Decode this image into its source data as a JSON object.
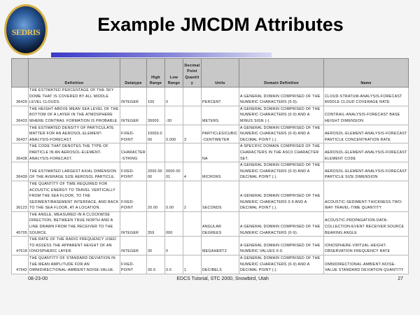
{
  "logo_text": "SEDRIS",
  "title": "Example JMCDM Attributes",
  "table": {
    "headers": [
      "",
      "Definition",
      "Datatype",
      "High Range",
      "Low Range",
      "Decimal Point Quantity",
      "Units",
      "Domain Definition",
      "Name"
    ],
    "rows": [
      [
        "36429",
        "THE ESTIMATED PERCENTAGE OF THE SKY DOME THAT IS COVERED BY ALL MIDDLE LEVEL CLOUDS.",
        "INTEGER",
        "100",
        "0",
        "",
        "PERCENT",
        "A GENERAL DOMAIN COMPRISED OF THE NUMERIC CHARACTERS (0-9).",
        "CLOUD-STRATUM-ANALYSIS-FORECAST MIDDLE CLOUD COVERAGE RATE"
      ],
      [
        "36433",
        "THE HEIGHT ABOVE MEAN SEA LEVEL OF THE BOTTOM OF A LAYER IN THE ATMOSPHERE WHERE CONTRAIL FORMATION IS PROBABLE.",
        "INTEGER",
        "30000",
        "-30",
        "",
        "METERS",
        "A GENERAL DOMAIN COMPRISED OF THE NUMERIC CHARACTERS (0-9) AND A MINUS SIGN (-).",
        "CONTRAIL-ANALYSIS-FORECAST BASE HEIGHT DIMENSION"
      ],
      [
        "36437",
        "THE ESTIMATED DENSITY OF PARTICULATE MATTER FOR AN AEROSOL-ELEMENT-ANALYSIS-FORECAST.",
        "FIXED-POINT",
        "10000.000",
        "0.000",
        "3",
        "PARTICLES/CUBIC-CENTIMETER",
        "A GENERAL DOMAIN COMPRISED OF THE NUMERIC CHARACTERS (0-9) AND A DECIMAL POINT (.).",
        "AEROSOL-ELEMENT-ANALYSIS-FORECAST PARTICLE CONCENTRATION RATE"
      ],
      [
        "36438",
        "THE CODE THAT DENOTES THE TYPE OF PARTICLE IN AN AEROSOL-ELEMENT-ANALYSIS-FORECAST.",
        "CHARACTER-STRING",
        "",
        "",
        "",
        "NA",
        "A SPECIFIC DOMAIN COMPRISED OF THE CHARACTERS IN THE ASCII CHARACTER SET.",
        "AEROSOL-ELEMENT-ANALYSIS-FORECAST ELEMENT CODE"
      ],
      [
        "36439",
        "THE ESTIMATED LARGEST AXIAL DIMENSION OF THE AVERAGE SIZE AEROSOL PARTICLE.",
        "FIXED-POINT",
        "2000.0000",
        "0000.0001",
        "4",
        "MICRONS",
        "A GENERAL DOMAIN COMPRISED OF THE NUMERIC CHARACTERS (0-9) AND A DECIMAL POINT (.).",
        "AEROSOL-ELEMENT-ANALYSIS-FORECAST PARTICLE SIZE DIMENSION"
      ],
      [
        "36123",
        "THE QUANTITY OF TIME REQUIRED FOR ACOUSTIC ENERGY TO TRAVEL VERTICALLY FROM THE SEA FLOOR, TO THE SEDIMENT/BASEMENT INTERFACE, AND BACK TO THE SEA FLOOR, AT A LOCATION.",
        "FIXED-POINT",
        "20.00",
        "0.00",
        "2",
        "SECONDS",
        "A GENERAL DOMAIN COMPRISED OF THE NUMERIC CHARACTERS 0-9 AND A DECIMAL POINT (.).",
        "ACOUSTIC-SEDIMENT-THICKNESS TWO-WAY TRAVEL-TIME QUANTITY"
      ],
      [
        "45705",
        "THE ANGLE, MEASURED IN A CLOCKWISE DIRECTION, BETWEEN TRUE NORTH AND A LINE DRAWN FROM THE RECEIVER TO THE SOURCE.",
        "INTEGER",
        "359",
        "000",
        "",
        "ANGULAR DEGREES",
        "A GENERAL DOMAIN COMPRISED OF THE NUMERIC CHARACTERS (0-9).",
        "ACOUSTIC-PROPAGATION-DATA-COLLECTION-EVENT RECEIVER SOURCE BEARING ANGLE"
      ],
      [
        "47618",
        "THE RATE OF THE RADIO FREQUENCY USED TO ASSESS THE APPARENT HEIGHT OF AN IONOSPHERIC LAYER.",
        "INTEGER",
        "30",
        "0",
        "",
        "MEGAHERTZ",
        "A GENERAL DOMAIN COMPRISED OF THE NUMERIC VALUES 0-9.",
        "IONOSPHERE-VIRTUAL-HEIGHT-OBSERVATION FREQUENCY RATE"
      ],
      [
        "47942",
        "THE QUANTITY OF STANDARD DEVIATION IN THE MEAN AMPLITUDE FOR AN OMNIDIRECTIONAL-AMBIENT-NOISE-VALUE.",
        "FIXED-POINT",
        "30.0",
        "0.0",
        "1",
        "DECIBELS",
        "A GENERAL DOMAIN COMPRISED OF THE NUMERIC CHARACTERS (0-9) AND A DECIMAL POINT (.).",
        "OMNIDIRECTIONAL-AMBIENT-NOISE-VALUE STANDARD DEVIATION QUANTITY"
      ]
    ]
  },
  "footer": {
    "date": "08-23-00",
    "center": "EDCS Tutorial, STC 2000, Snowbird, Utah",
    "page": "27"
  }
}
